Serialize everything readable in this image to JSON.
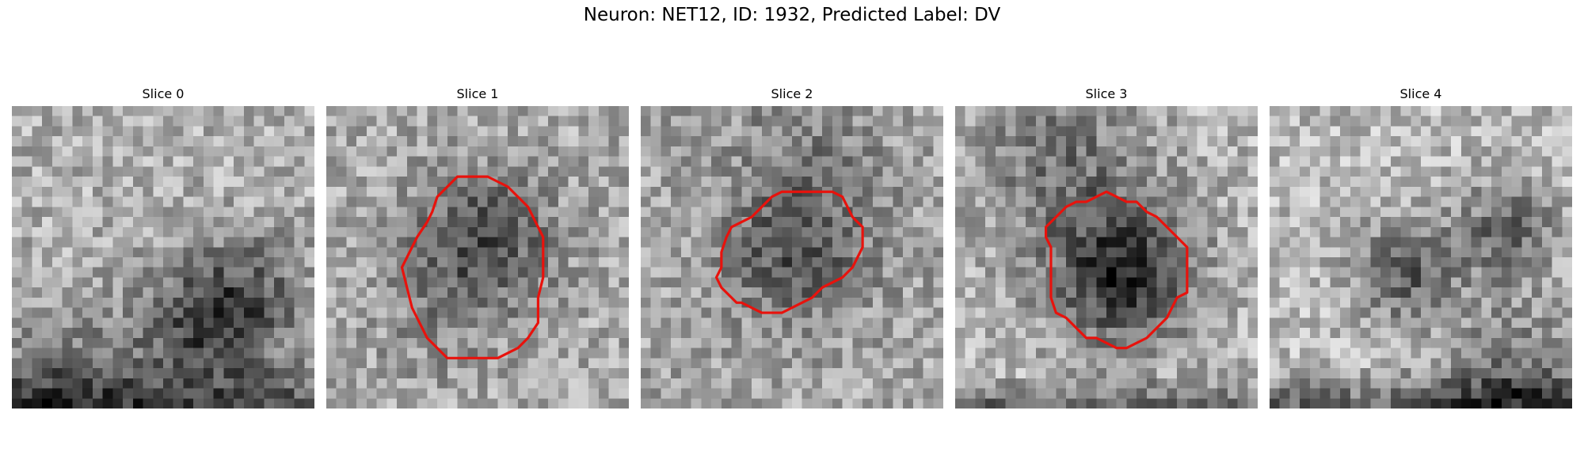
{
  "figure": {
    "title": "Neuron: NET12, ID: 1932, Predicted Label: DV"
  },
  "panels": [
    {
      "title": "Slice 0",
      "contour_color": "#e8120c",
      "seed": 11
    },
    {
      "title": "Slice 1",
      "contour_color": "#e8120c",
      "seed": 23
    },
    {
      "title": "Slice 2",
      "contour_color": "#e8120c",
      "seed": 37
    },
    {
      "title": "Slice 3",
      "contour_color": "#e8120c",
      "seed": 51
    },
    {
      "title": "Slice 4",
      "contour_color": "#e8120c",
      "seed": 67
    }
  ]
}
